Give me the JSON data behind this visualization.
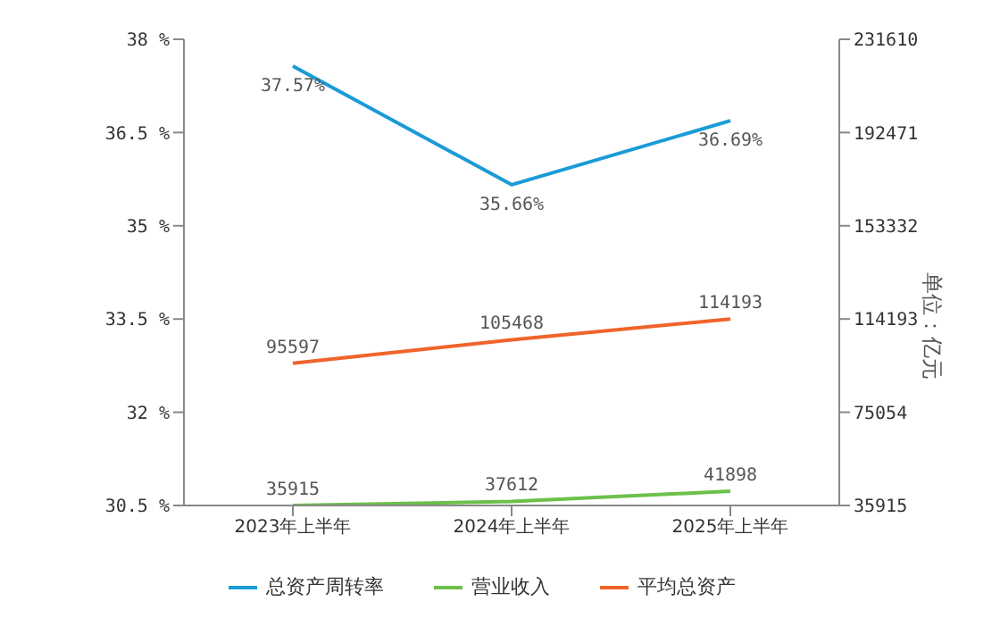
{
  "chart_data": {
    "type": "line",
    "categories": [
      "2023年上半年",
      "2024年上半年",
      "2025年上半年"
    ],
    "series": [
      {
        "name": "总资产周转率",
        "color": "#1a9bd7",
        "values": [
          37.57,
          35.66,
          36.69
        ],
        "value_labels": [
          "37.57%",
          "35.66%",
          "36.69%"
        ]
      },
      {
        "name": "营业收入",
        "color": "#6cc04a",
        "values": [
          35915,
          37612,
          41898
        ],
        "axis": "y2",
        "value_labels": [
          "35915",
          "37612",
          "41898"
        ]
      },
      {
        "name": "平均总资产",
        "color": "#f0642a",
        "values": [
          95597,
          105468,
          114193
        ],
        "axis": "y2",
        "value_labels": [
          "95597",
          "105468",
          "114193"
        ]
      }
    ],
    "ylim": [
      30.5,
      38
    ],
    "yticks": [
      {
        "value": 30.5,
        "label": "30.5 %"
      },
      {
        "value": 32,
        "label": "32 %"
      },
      {
        "value": 33.5,
        "label": "33.5 %"
      },
      {
        "value": 35,
        "label": "35 %"
      },
      {
        "value": 36.5,
        "label": "36.5 %"
      },
      {
        "value": 38,
        "label": "38 %"
      }
    ],
    "y2lim": [
      35915,
      231610
    ],
    "y2ticks": [
      35915,
      75054,
      114193,
      153332,
      192471,
      231610
    ],
    "y2label": "单位：亿元",
    "grid": false,
    "legend": "bottom",
    "marker": "none",
    "line_style": "solid"
  }
}
